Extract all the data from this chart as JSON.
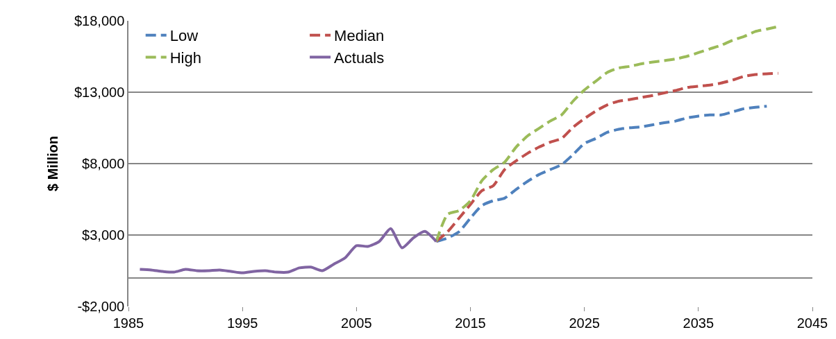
{
  "chart_data": {
    "type": "line",
    "ylabel": "$ Million",
    "xlim": [
      1985,
      2045
    ],
    "xticks": [
      1985,
      1995,
      2005,
      2015,
      2025,
      2035,
      2045
    ],
    "ylim": [
      -2000,
      18000
    ],
    "yticks": [
      {
        "value": -2000,
        "label": "-$2,000"
      },
      {
        "value": 3000,
        "label": "$3,000"
      },
      {
        "value": 8000,
        "label": "$8,000"
      },
      {
        "value": 13000,
        "label": "$13,000"
      },
      {
        "value": 18000,
        "label": "$18,000"
      }
    ],
    "grid": "y",
    "legend": "top left",
    "marker": "none",
    "series": [
      {
        "name": "Low",
        "color": "#4f81bd",
        "line_style": "dashed",
        "x": [
          2012,
          2013,
          2014,
          2015,
          2016,
          2017,
          2018,
          2019,
          2020,
          2021,
          2022,
          2023,
          2024,
          2025,
          2026,
          2027,
          2028,
          2029,
          2030,
          2031,
          2032,
          2033,
          2034,
          2035,
          2036,
          2037,
          2038,
          2039,
          2040,
          2041
        ],
        "values": [
          2550,
          2790,
          3230,
          4180,
          5060,
          5400,
          5580,
          6190,
          6750,
          7230,
          7580,
          7930,
          8630,
          9410,
          9760,
          10190,
          10400,
          10510,
          10580,
          10720,
          10860,
          10980,
          11200,
          11330,
          11410,
          11410,
          11620,
          11850,
          11940,
          12020
        ]
      },
      {
        "name": "Median",
        "color": "#c0504d",
        "line_style": "dashed",
        "x": [
          2012,
          2013,
          2014,
          2015,
          2016,
          2017,
          2018,
          2019,
          2020,
          2021,
          2022,
          2023,
          2024,
          2025,
          2026,
          2027,
          2028,
          2029,
          2030,
          2031,
          2032,
          2033,
          2034,
          2035,
          2036,
          2037,
          2038,
          2039,
          2040,
          2041,
          2042
        ],
        "values": [
          2550,
          3230,
          4180,
          5140,
          6100,
          6450,
          7580,
          8190,
          8710,
          9150,
          9500,
          9760,
          10540,
          11150,
          11680,
          12110,
          12370,
          12490,
          12630,
          12770,
          12950,
          13120,
          13330,
          13420,
          13500,
          13640,
          13850,
          14110,
          14240,
          14290,
          14320
        ]
      },
      {
        "name": "High",
        "color": "#9bbb59",
        "line_style": "dashed",
        "x": [
          2012,
          2013,
          2014,
          2015,
          2016,
          2017,
          2018,
          2019,
          2020,
          2021,
          2022,
          2023,
          2024,
          2025,
          2026,
          2027,
          2028,
          2029,
          2030,
          2031,
          2032,
          2033,
          2034,
          2035,
          2036,
          2037,
          2038,
          2039,
          2040,
          2041,
          2042
        ],
        "values": [
          2550,
          4450,
          4710,
          5400,
          6800,
          7580,
          8100,
          9150,
          9930,
          10460,
          10980,
          11410,
          12370,
          13160,
          13770,
          14380,
          14690,
          14810,
          14990,
          15110,
          15210,
          15330,
          15510,
          15770,
          16030,
          16290,
          16640,
          16900,
          17250,
          17420,
          17600
        ]
      },
      {
        "name": "Actuals",
        "color": "#8064a2",
        "line_style": "solid",
        "x": [
          1986,
          1987,
          1988,
          1989,
          1990,
          1991,
          1992,
          1993,
          1994,
          1995,
          1996,
          1997,
          1998,
          1999,
          2000,
          2001,
          2002,
          2003,
          2004,
          2005,
          2006,
          2007,
          2008,
          2009,
          2010,
          2011,
          2012
        ],
        "values": [
          600,
          550,
          450,
          400,
          600,
          500,
          500,
          550,
          450,
          350,
          450,
          500,
          400,
          400,
          700,
          750,
          500,
          950,
          1400,
          2250,
          2200,
          2550,
          3450,
          2100,
          2800,
          3250,
          2550
        ]
      }
    ]
  }
}
